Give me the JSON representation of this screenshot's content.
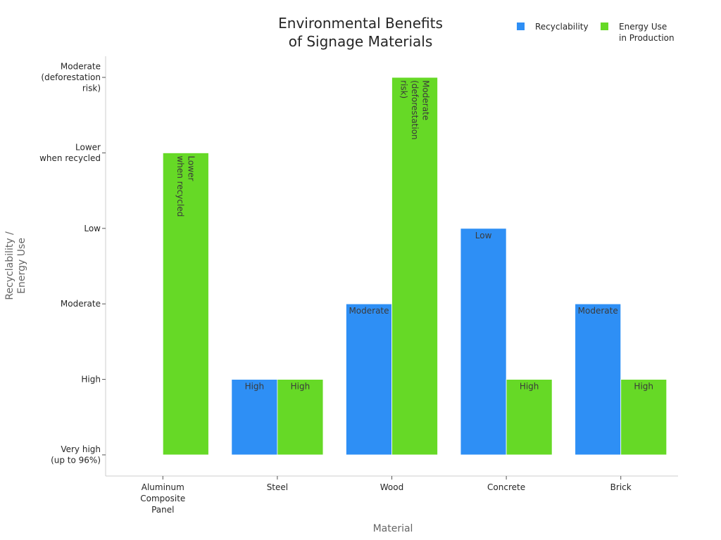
{
  "chart_data": {
    "type": "bar",
    "title": [
      "Environmental Benefits",
      "of Signage Materials"
    ],
    "xlabel": "Material",
    "ylabel": [
      "Recyclability /",
      "Energy Use"
    ],
    "categories": [
      [
        "Aluminum",
        "Composite",
        "Panel"
      ],
      [
        "Steel"
      ],
      [
        "Wood"
      ],
      [
        "Concrete"
      ],
      [
        "Brick"
      ]
    ],
    "y_levels": [
      [
        "Very high",
        "(up to 96%)"
      ],
      [
        "High"
      ],
      [
        "Moderate"
      ],
      [
        "Low"
      ],
      [
        "Lower",
        "when recycled"
      ],
      [
        "Moderate",
        "(deforestation",
        "risk)"
      ]
    ],
    "series": [
      {
        "name": [
          "Recyclability"
        ],
        "color": "#2e8ff5",
        "values": [
          0,
          1,
          2,
          3,
          2
        ],
        "labels": [
          [],
          [
            "High"
          ],
          [
            "Moderate"
          ],
          [
            "Low"
          ],
          [
            "Moderate"
          ]
        ]
      },
      {
        "name": [
          "Energy Use",
          "in Production"
        ],
        "color": "#66d926",
        "values": [
          4,
          1,
          5,
          1,
          1
        ],
        "labels": [
          [
            "Lower",
            "when recycled"
          ],
          [
            "High"
          ],
          [
            "Moderate",
            "(deforestation",
            "risk)"
          ],
          [
            "High"
          ],
          [
            "High"
          ]
        ]
      }
    ],
    "ylim": [
      -0.28,
      5.28
    ],
    "grid": false,
    "legend_position": "top-right"
  }
}
